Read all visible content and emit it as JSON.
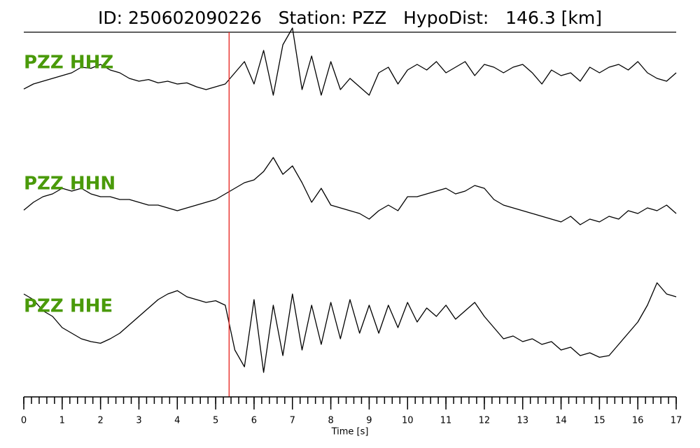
{
  "chart_data": {
    "type": "seismogram",
    "title": "ID: 250602090226   Station: PZZ   HypoDist:   146.3 [km]",
    "x_label": "Time [s]",
    "xlim": [
      0,
      17
    ],
    "xticks": [
      0,
      1,
      2,
      3,
      4,
      5,
      6,
      7,
      8,
      9,
      10,
      11,
      12,
      13,
      14,
      15,
      16,
      17
    ],
    "xminor_step": 0.2,
    "ylim": [
      -1,
      1
    ],
    "label_color": "#4a9a0a",
    "pick": {
      "time": 5.35,
      "color": "#e8201c"
    },
    "x": [
      0,
      0.25,
      0.5,
      0.75,
      1,
      1.25,
      1.5,
      1.75,
      2,
      2.25,
      2.5,
      2.75,
      3,
      3.25,
      3.5,
      3.75,
      4,
      4.25,
      4.5,
      4.75,
      5,
      5.25,
      5.5,
      5.75,
      6,
      6.25,
      6.5,
      6.75,
      7,
      7.25,
      7.5,
      7.75,
      8,
      8.25,
      8.5,
      8.75,
      9,
      9.25,
      9.5,
      9.75,
      10,
      10.25,
      10.5,
      10.75,
      11,
      11.25,
      11.5,
      11.75,
      12,
      12.25,
      12.5,
      12.75,
      13,
      13.25,
      13.5,
      13.75,
      14,
      14.25,
      14.5,
      14.75,
      15,
      15.25,
      15.5,
      15.75,
      16,
      16.25,
      16.5,
      16.75,
      17
    ],
    "series": [
      {
        "name": "PZZ HHZ",
        "color": "#000000",
        "values": [
          -0.19,
          -0.1,
          -0.05,
          0.0,
          0.05,
          0.1,
          0.2,
          0.18,
          0.25,
          0.15,
          0.1,
          0.0,
          -0.05,
          -0.02,
          -0.08,
          -0.05,
          -0.1,
          -0.08,
          -0.15,
          -0.2,
          -0.15,
          -0.1,
          0.1,
          0.3,
          -0.1,
          0.5,
          -0.3,
          0.6,
          0.9,
          -0.2,
          0.4,
          -0.3,
          0.3,
          -0.2,
          0.0,
          -0.15,
          -0.3,
          0.1,
          0.2,
          -0.1,
          0.15,
          0.25,
          0.15,
          0.3,
          0.1,
          0.2,
          0.3,
          0.05,
          0.25,
          0.2,
          0.1,
          0.2,
          0.25,
          0.1,
          -0.1,
          0.15,
          0.05,
          0.1,
          -0.05,
          0.2,
          0.1,
          0.2,
          0.25,
          0.15,
          0.3,
          0.1,
          0.0,
          -0.05,
          0.1
        ]
      },
      {
        "name": "PZZ HHN",
        "color": "#000000",
        "values": [
          -0.19,
          -0.05,
          0.05,
          0.1,
          0.2,
          0.15,
          0.2,
          0.1,
          0.05,
          0.05,
          0.0,
          0.0,
          -0.05,
          -0.1,
          -0.1,
          -0.15,
          -0.2,
          -0.15,
          -0.1,
          -0.05,
          0.0,
          0.1,
          0.2,
          0.3,
          0.35,
          0.5,
          0.75,
          0.45,
          0.6,
          0.3,
          -0.05,
          0.2,
          -0.1,
          -0.15,
          -0.2,
          -0.25,
          -0.35,
          -0.2,
          -0.1,
          -0.2,
          0.05,
          0.05,
          0.1,
          0.15,
          0.2,
          0.1,
          0.15,
          0.25,
          0.2,
          0.0,
          -0.1,
          -0.15,
          -0.2,
          -0.25,
          -0.3,
          -0.35,
          -0.4,
          -0.3,
          -0.45,
          -0.35,
          -0.4,
          -0.3,
          -0.35,
          -0.2,
          -0.25,
          -0.15,
          -0.2,
          -0.1,
          -0.25
        ]
      },
      {
        "name": "PZZ HHE",
        "color": "#000000",
        "values": [
          0.5,
          0.4,
          0.2,
          0.1,
          -0.1,
          -0.2,
          -0.3,
          -0.35,
          -0.38,
          -0.3,
          -0.2,
          -0.05,
          0.1,
          0.25,
          0.4,
          0.5,
          0.56,
          0.45,
          0.4,
          0.35,
          0.38,
          0.3,
          -0.5,
          -0.8,
          0.4,
          -0.9,
          0.3,
          -0.6,
          0.5,
          -0.5,
          0.3,
          -0.4,
          0.35,
          -0.3,
          0.4,
          -0.2,
          0.3,
          -0.2,
          0.3,
          -0.1,
          0.35,
          0.0,
          0.25,
          0.1,
          0.3,
          0.05,
          0.2,
          0.35,
          0.1,
          -0.1,
          -0.3,
          -0.25,
          -0.35,
          -0.3,
          -0.4,
          -0.35,
          -0.5,
          -0.45,
          -0.6,
          -0.55,
          -0.63,
          -0.6,
          -0.4,
          -0.2,
          0.0,
          0.3,
          0.7,
          0.5,
          0.45
        ]
      }
    ]
  }
}
